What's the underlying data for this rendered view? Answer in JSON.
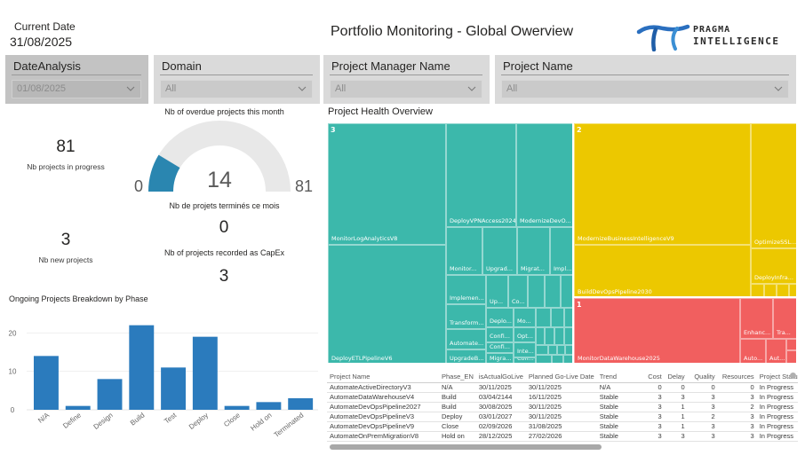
{
  "header": {
    "current_date_label": "Current Date",
    "current_date_value": "31/08/2025",
    "title": "Portfolio Monitoring - Global Owerview",
    "logo": {
      "line1": "PRAGMA",
      "line2": "INTELLIGENCE",
      "icon": "pi-logo-icon",
      "color": "#2a6fbf"
    }
  },
  "slicers": [
    {
      "title": "DateAnalysis",
      "value": "01/08/2025"
    },
    {
      "title": "Domain",
      "value": "All"
    },
    {
      "title": "Project Manager Name",
      "value": "All"
    },
    {
      "title": "Project Name",
      "value": "All"
    }
  ],
  "kpis": {
    "in_progress": {
      "value": "81",
      "label": "Nb projects in progress"
    },
    "new_projects": {
      "value": "3",
      "label": "Nb new projects"
    },
    "completed": {
      "value": "0",
      "label": "Nb de projets terminés ce mois"
    },
    "capex": {
      "value": "3",
      "label": "Nb of projects recorded as CapEx"
    }
  },
  "gauge": {
    "title": "Nb of overdue projects this month",
    "value": 14,
    "min": 0,
    "max": 81,
    "value_label": "14",
    "min_label": "0",
    "max_label": "81",
    "fill_color": "#2a86b0",
    "track_color": "#e8e8e8"
  },
  "chart_data": [
    {
      "type": "bar",
      "title": "Ongoing Projects Breakdown by Phase",
      "categories": [
        "N/A",
        "Define",
        "Design",
        "Build",
        "Test",
        "Deploy",
        "Close",
        "Hold on",
        "Terminated"
      ],
      "values": [
        14,
        1,
        8,
        22,
        11,
        19,
        1,
        2,
        3
      ],
      "xlabel": "",
      "ylabel": "",
      "ylim": [
        0,
        24
      ],
      "yticks": [
        0,
        10,
        20
      ],
      "grid": true,
      "color": "#2b7bbd"
    },
    {
      "type": "treemap",
      "title": "Project Health Overview",
      "groups": [
        {
          "name": "3",
          "color": "#3cb8ab",
          "items": [
            "MonitorLogAnalyticsV8",
            "DeployETLPipelineV6",
            "DeployVPNAccess2024",
            "ModernizeDevO...",
            "Monitor...",
            "Upgrad...",
            "Migrat...",
            "Impl...",
            "Implemen...",
            "Up...",
            "Co...",
            "Transform...",
            "Deplo...",
            "Mo...",
            "Automate...",
            "Confi...",
            "Opt...",
            "Confi...",
            "Inte...",
            "UpgradeB...",
            "Migra...",
            "Con..."
          ]
        },
        {
          "name": "2",
          "color": "#ecc800",
          "items": [
            "ModernizeBusinessIntelligenceV9",
            "BuildDevOpsPipeline2030",
            "OptimizeSSL...",
            "DeployInfra..."
          ]
        },
        {
          "name": "1",
          "color": "#f15f5f",
          "items": [
            "MonitorDataWarehouse2025",
            "Enhanc...",
            "Tra...",
            "Auto...",
            "Aut..."
          ]
        }
      ]
    }
  ],
  "table": {
    "columns": [
      "Project Name",
      "Phase_EN",
      "isActualGoLive",
      "Planned Go-Live Date",
      "Trend",
      "Cost",
      "Delay",
      "Quality",
      "Resources",
      "Project Status"
    ],
    "rows": [
      [
        "AutomateActiveDirectoryV3",
        "N/A",
        "30/11/2025",
        "30/11/2025",
        "N/A",
        "0",
        "0",
        "0",
        "0",
        "In Progress"
      ],
      [
        "AutomateDataWarehouseV4",
        "Build",
        "03/04/2144",
        "16/11/2025",
        "Stable",
        "3",
        "3",
        "3",
        "3",
        "In Progress"
      ],
      [
        "AutomateDevOpsPipeline2027",
        "Build",
        "30/08/2025",
        "30/11/2025",
        "Stable",
        "3",
        "1",
        "3",
        "2",
        "In Progress"
      ],
      [
        "AutomateDevOpsPipelineV3",
        "Deploy",
        "03/01/2027",
        "30/11/2025",
        "Stable",
        "3",
        "1",
        "2",
        "3",
        "In Progress"
      ],
      [
        "AutomateDevOpsPipelineV9",
        "Close",
        "02/09/2026",
        "31/08/2025",
        "Stable",
        "3",
        "1",
        "3",
        "3",
        "In Progress"
      ],
      [
        "AutomateOnPremMigrationV8",
        "Hold on",
        "28/12/2025",
        "27/02/2026",
        "Stable",
        "3",
        "3",
        "3",
        "3",
        "In Progress"
      ]
    ]
  }
}
